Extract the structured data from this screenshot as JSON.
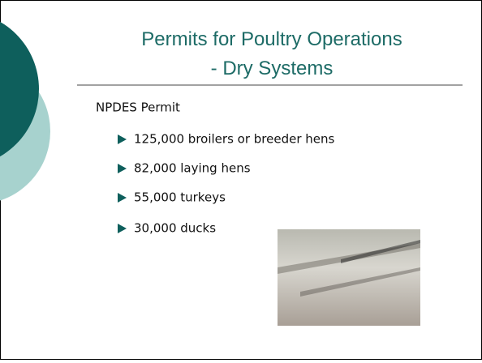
{
  "title": {
    "lines": [
      "Permits for Poultry Operations",
      "- Dry Systems"
    ]
  },
  "body": {
    "heading": "NPDES Permit",
    "bullets": [
      "125,000 broilers or breeder hens",
      "82,000 laying hens",
      "55,000 turkeys",
      "30,000 ducks"
    ]
  }
}
